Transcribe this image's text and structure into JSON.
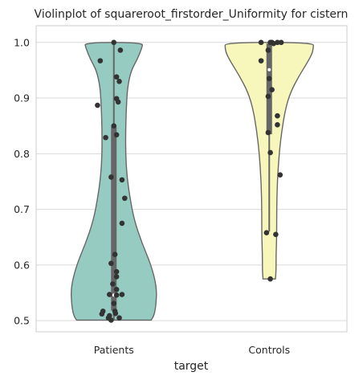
{
  "chart_data": {
    "type": "violin",
    "title": "Violinplot of squareroot_firstorder_Uniformity for cistern",
    "xlabel": "target",
    "ylabel": "",
    "ylim": [
      0.48,
      1.03
    ],
    "yticks": [
      0.5,
      0.6,
      0.7,
      0.8,
      0.9,
      1.0
    ],
    "ytick_labels": [
      "0.5",
      "0.6",
      "0.7",
      "0.8",
      "0.9",
      "1.0"
    ],
    "grid": true,
    "categories": [
      "Patients",
      "Controls"
    ],
    "groups": [
      {
        "name": "Patients",
        "color": "#96cbc2",
        "min": 0.501,
        "max": 1.0,
        "q1": 0.518,
        "median": 0.546,
        "q3": 0.848,
        "whisker_low": 0.501,
        "whisker_high": 1.0,
        "density_profile": [
          [
            0.501,
            0.6
          ],
          [
            0.51,
            0.65
          ],
          [
            0.53,
            0.68
          ],
          [
            0.56,
            0.69
          ],
          [
            0.6,
            0.6
          ],
          [
            0.64,
            0.45
          ],
          [
            0.68,
            0.33
          ],
          [
            0.72,
            0.26
          ],
          [
            0.76,
            0.21
          ],
          [
            0.8,
            0.19
          ],
          [
            0.84,
            0.19
          ],
          [
            0.88,
            0.2
          ],
          [
            0.92,
            0.22
          ],
          [
            0.95,
            0.28
          ],
          [
            0.97,
            0.38
          ],
          [
            0.99,
            0.45
          ],
          [
            1.0,
            0.47
          ]
        ],
        "points": [
          {
            "jitter": 0.0,
            "y": 1.0
          },
          {
            "jitter": -0.25,
            "y": 0.967
          },
          {
            "jitter": 0.12,
            "y": 0.986
          },
          {
            "jitter": 0.05,
            "y": 0.938
          },
          {
            "jitter": 0.1,
            "y": 0.93
          },
          {
            "jitter": 0.05,
            "y": 0.899
          },
          {
            "jitter": 0.08,
            "y": 0.893
          },
          {
            "jitter": -0.3,
            "y": 0.887
          },
          {
            "jitter": 0.0,
            "y": 0.85
          },
          {
            "jitter": 0.05,
            "y": 0.834
          },
          {
            "jitter": -0.15,
            "y": 0.829
          },
          {
            "jitter": -0.05,
            "y": 0.758
          },
          {
            "jitter": 0.15,
            "y": 0.753
          },
          {
            "jitter": 0.2,
            "y": 0.72
          },
          {
            "jitter": 0.15,
            "y": 0.675
          },
          {
            "jitter": 0.02,
            "y": 0.619
          },
          {
            "jitter": -0.05,
            "y": 0.603
          },
          {
            "jitter": 0.05,
            "y": 0.588
          },
          {
            "jitter": 0.05,
            "y": 0.579
          },
          {
            "jitter": -0.02,
            "y": 0.566
          },
          {
            "jitter": 0.05,
            "y": 0.556
          },
          {
            "jitter": -0.08,
            "y": 0.547
          },
          {
            "jitter": 0.05,
            "y": 0.546
          },
          {
            "jitter": 0.15,
            "y": 0.547
          },
          {
            "jitter": 0.0,
            "y": 0.531
          },
          {
            "jitter": -0.2,
            "y": 0.517
          },
          {
            "jitter": 0.02,
            "y": 0.517
          },
          {
            "jitter": -0.22,
            "y": 0.512
          },
          {
            "jitter": -0.08,
            "y": 0.509
          },
          {
            "jitter": 0.03,
            "y": 0.513
          },
          {
            "jitter": -0.1,
            "y": 0.505
          },
          {
            "jitter": -0.05,
            "y": 0.501
          },
          {
            "jitter": 0.1,
            "y": 0.505
          }
        ]
      },
      {
        "name": "Controls",
        "color": "#f7f7bb",
        "min": 0.575,
        "max": 1.0,
        "q1": 0.835,
        "median": 0.951,
        "q3": 0.998,
        "whisker_low": 0.66,
        "whisker_high": 1.0,
        "density_profile": [
          [
            0.575,
            0.1
          ],
          [
            0.59,
            0.11
          ],
          [
            0.62,
            0.11
          ],
          [
            0.65,
            0.12
          ],
          [
            0.7,
            0.12
          ],
          [
            0.75,
            0.13
          ],
          [
            0.8,
            0.16
          ],
          [
            0.84,
            0.2
          ],
          [
            0.88,
            0.26
          ],
          [
            0.91,
            0.34
          ],
          [
            0.94,
            0.48
          ],
          [
            0.965,
            0.62
          ],
          [
            0.98,
            0.69
          ],
          [
            0.99,
            0.71
          ],
          [
            1.0,
            0.71
          ]
        ],
        "points": [
          {
            "jitter": -0.15,
            "y": 1.0
          },
          {
            "jitter": 0.02,
            "y": 1.0
          },
          {
            "jitter": 0.05,
            "y": 1.0
          },
          {
            "jitter": 0.08,
            "y": 0.998
          },
          {
            "jitter": 0.15,
            "y": 1.0
          },
          {
            "jitter": 0.22,
            "y": 1.0
          },
          {
            "jitter": -0.02,
            "y": 0.986
          },
          {
            "jitter": -0.15,
            "y": 0.967
          },
          {
            "jitter": 0.0,
            "y": 0.935
          },
          {
            "jitter": 0.05,
            "y": 0.915
          },
          {
            "jitter": -0.02,
            "y": 0.903
          },
          {
            "jitter": 0.15,
            "y": 0.868
          },
          {
            "jitter": 0.15,
            "y": 0.852
          },
          {
            "jitter": -0.02,
            "y": 0.838
          },
          {
            "jitter": 0.02,
            "y": 0.802
          },
          {
            "jitter": 0.2,
            "y": 0.762
          },
          {
            "jitter": -0.05,
            "y": 0.658
          },
          {
            "jitter": 0.12,
            "y": 0.655
          },
          {
            "jitter": 0.02,
            "y": 0.575
          }
        ]
      }
    ]
  }
}
